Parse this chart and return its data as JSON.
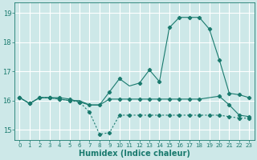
{
  "xlabel": "Humidex (Indice chaleur)",
  "background_color": "#cde8e8",
  "grid_color": "#ffffff",
  "line_color": "#1a7a6e",
  "xlim": [
    -0.5,
    23.5
  ],
  "ylim": [
    14.65,
    19.35
  ],
  "yticks": [
    15,
    16,
    17,
    18,
    19
  ],
  "xticks": [
    0,
    1,
    2,
    3,
    4,
    5,
    6,
    7,
    8,
    9,
    10,
    11,
    12,
    13,
    14,
    15,
    16,
    17,
    18,
    19,
    20,
    21,
    22,
    23
  ],
  "line1_x": [
    0,
    1,
    2,
    3,
    4,
    5,
    6,
    7,
    8,
    9,
    10,
    11,
    12,
    13,
    14,
    15,
    16,
    17,
    18,
    20,
    21,
    22,
    23
  ],
  "line1_y": [
    16.1,
    15.9,
    16.1,
    16.1,
    16.1,
    16.05,
    15.95,
    15.85,
    15.85,
    16.05,
    16.05,
    16.05,
    16.05,
    16.05,
    16.05,
    16.05,
    16.05,
    16.05,
    16.05,
    16.15,
    15.85,
    15.5,
    15.45
  ],
  "line2_x": [
    0,
    1,
    2,
    3,
    4,
    5,
    6,
    7,
    8,
    9,
    10,
    11,
    12,
    13,
    14,
    15,
    16,
    17,
    18,
    19,
    20,
    21,
    22,
    23
  ],
  "line2_y": [
    16.1,
    15.9,
    16.1,
    16.1,
    16.05,
    16.0,
    15.95,
    15.6,
    14.85,
    14.9,
    15.5,
    15.5,
    15.5,
    15.5,
    15.5,
    15.5,
    15.5,
    15.5,
    15.5,
    15.5,
    15.5,
    15.45,
    15.4,
    15.4
  ],
  "line3_x": [
    0,
    1,
    2,
    3,
    4,
    5,
    6,
    7,
    8,
    9,
    10,
    11,
    12,
    13,
    14,
    15,
    16,
    17,
    18,
    19,
    20,
    21,
    22,
    23
  ],
  "line3_y": [
    16.1,
    15.9,
    16.1,
    16.1,
    16.05,
    16.0,
    16.0,
    15.85,
    15.85,
    16.3,
    16.75,
    16.5,
    16.6,
    17.05,
    16.65,
    18.5,
    18.85,
    18.85,
    18.85,
    18.45,
    17.4,
    16.25,
    16.2,
    16.1
  ],
  "line1_markers_x": [
    0,
    1,
    2,
    3,
    4,
    5,
    6,
    7,
    8,
    9,
    10,
    11,
    12,
    13,
    14,
    15,
    16,
    17,
    18,
    20,
    21,
    22,
    23
  ],
  "line1_markers_y": [
    16.1,
    15.9,
    16.1,
    16.1,
    16.1,
    16.05,
    15.95,
    15.85,
    15.85,
    16.05,
    16.05,
    16.05,
    16.05,
    16.05,
    16.05,
    16.05,
    16.05,
    16.05,
    16.05,
    16.15,
    15.85,
    15.5,
    15.45
  ],
  "line3_markers_x": [
    0,
    1,
    3,
    4,
    9,
    10,
    12,
    13,
    14,
    15,
    16,
    17,
    18,
    19,
    20,
    21,
    22,
    23
  ],
  "line3_markers_y": [
    16.1,
    15.9,
    16.1,
    16.05,
    16.3,
    16.75,
    16.6,
    17.05,
    16.65,
    18.5,
    18.85,
    18.85,
    18.85,
    18.45,
    17.4,
    16.25,
    16.2,
    16.1
  ],
  "markersize": 2.2
}
